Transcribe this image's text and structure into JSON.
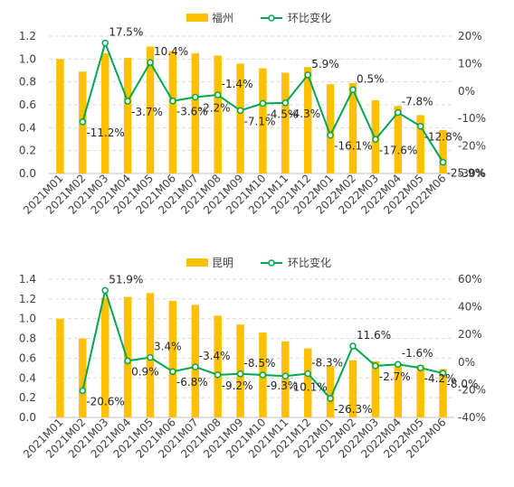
{
  "chart_data": [
    {
      "type": "bar+line",
      "categories": [
        "2021M01",
        "2021M02",
        "2021M03",
        "2021M04",
        "2021M05",
        "2021M06",
        "2021M07",
        "2021M08",
        "2021M09",
        "2021M10",
        "2021M11",
        "2021M12",
        "2022M01",
        "2022M02",
        "2022M03",
        "2022M04",
        "2022M05",
        "2022M06"
      ],
      "series": [
        {
          "name": "福州",
          "kind": "bar",
          "axis": "left",
          "values": [
            1.0,
            0.89,
            1.05,
            1.01,
            1.11,
            1.07,
            1.05,
            1.03,
            0.96,
            0.92,
            0.88,
            0.93,
            0.78,
            0.79,
            0.64,
            0.59,
            0.51,
            0.38
          ]
        },
        {
          "name": "环比变化",
          "kind": "line",
          "axis": "right",
          "values": [
            null,
            -11.2,
            17.5,
            -3.7,
            10.4,
            -3.6,
            -2.2,
            -1.4,
            -7.1,
            -4.5,
            -4.3,
            5.9,
            -16.1,
            0.5,
            -17.6,
            -7.8,
            -12.8,
            -25.9
          ],
          "labels": [
            "",
            "-11.2%",
            "17.5%",
            "-3.7%",
            "10.4%",
            "-3.6%",
            "-2.2%",
            "-1.4%",
            "-7.1%",
            "-4.5%",
            "-4.3%",
            "5.9%",
            "-16.1%",
            "0.5%",
            "-17.6%",
            "-7.8%",
            "-12.8%",
            "-25.9%"
          ]
        }
      ],
      "y_left": {
        "range": [
          0,
          1.2
        ],
        "ticks": [
          "0.0",
          "0.2",
          "0.4",
          "0.6",
          "0.8",
          "1.0",
          "1.2"
        ]
      },
      "y_right": {
        "range": [
          -30,
          20
        ],
        "ticks": [
          "-30%",
          "-20%",
          "-10%",
          "0%",
          "10%",
          "20%"
        ]
      },
      "legend_position": "top-right",
      "grid": "horizontal-dashed",
      "colors": {
        "bar": "#FFC000",
        "line": "#00A650",
        "marker_fill": "#ffffff"
      }
    },
    {
      "type": "bar+line",
      "categories": [
        "2021M01",
        "2021M02",
        "2021M03",
        "2021M04",
        "2021M05",
        "2021M06",
        "2021M07",
        "2021M08",
        "2021M09",
        "2021M10",
        "2021M11",
        "2021M12",
        "2022M01",
        "2022M02",
        "2022M03",
        "2022M04",
        "2022M05",
        "2022M06"
      ],
      "series": [
        {
          "name": "昆明",
          "kind": "bar",
          "axis": "left",
          "values": [
            1.0,
            0.8,
            1.21,
            1.22,
            1.26,
            1.18,
            1.14,
            1.03,
            0.94,
            0.86,
            0.77,
            0.7,
            0.52,
            0.58,
            0.57,
            0.55,
            0.53,
            0.49
          ]
        },
        {
          "name": "环比变化",
          "kind": "line",
          "axis": "right",
          "values": [
            null,
            -20.6,
            51.9,
            0.9,
            3.4,
            -6.8,
            -3.4,
            -9.2,
            -8.5,
            -9.3,
            -10.1,
            -8.3,
            -26.3,
            11.6,
            -2.7,
            -1.6,
            -4.2,
            -8.0
          ],
          "labels": [
            "",
            "-20.6%",
            "51.9%",
            "0.9%",
            "3.4%",
            "-6.8%",
            "-3.4%",
            "-9.2%",
            "-8.5%",
            "-9.3%",
            "-10.1%",
            "-8.3%",
            "-26.3%",
            "11.6%",
            "-2.7%",
            "-1.6%",
            "-4.2%",
            "-8.0%"
          ]
        }
      ],
      "y_left": {
        "range": [
          0,
          1.4
        ],
        "ticks": [
          "0.0",
          "0.2",
          "0.4",
          "0.6",
          "0.8",
          "1.0",
          "1.2",
          "1.4"
        ]
      },
      "y_right": {
        "range": [
          -40,
          60
        ],
        "ticks": [
          "-40%",
          "-20%",
          "0%",
          "20%",
          "40%",
          "60%"
        ]
      },
      "legend_position": "top-right",
      "grid": "horizontal-dashed",
      "colors": {
        "bar": "#FFC000",
        "line": "#00A650",
        "marker_fill": "#ffffff"
      }
    }
  ]
}
